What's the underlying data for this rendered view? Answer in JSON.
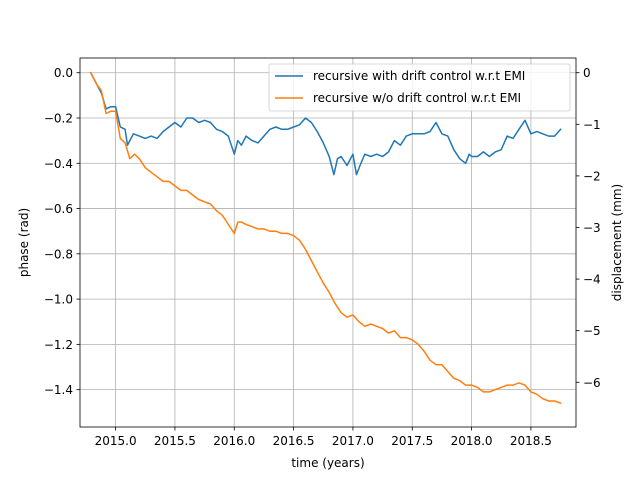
{
  "chart_data": {
    "type": "line",
    "title": "",
    "xlabel": "time (years)",
    "ylabel": "phase (rad)",
    "y2label": "displacement (mm)",
    "xlim": [
      2014.7,
      2018.88
    ],
    "ylim": [
      -1.565,
      0.065
    ],
    "y2lim": [
      -6.867,
      0.285
    ],
    "xticks": [
      2015.0,
      2015.5,
      2016.0,
      2016.5,
      2017.0,
      2017.5,
      2018.0,
      2018.5
    ],
    "xtick_labels": [
      "2015.0",
      "2015.5",
      "2016.0",
      "2016.5",
      "2017.0",
      "2017.5",
      "2018.0",
      "2018.5"
    ],
    "yticks": [
      0.0,
      -0.2,
      -0.4,
      -0.6,
      -0.8,
      -1.0,
      -1.2,
      -1.4
    ],
    "ytick_labels": [
      "0.0",
      "−0.2",
      "−0.4",
      "−0.6",
      "−0.8",
      "−1.0",
      "−1.2",
      "−1.4"
    ],
    "y2ticks": [
      0,
      -1,
      -2,
      -3,
      -4,
      -5,
      -6
    ],
    "y2tick_labels": [
      "0",
      "−1",
      "−2",
      "−3",
      "−4",
      "−5",
      "−6"
    ],
    "grid": true,
    "legend": "top-right",
    "series": [
      {
        "name": "recursive with drift control w.r.t EMI",
        "color": "#1f77b4",
        "x": [
          2014.79,
          2014.84,
          2014.88,
          2014.92,
          2014.96,
          2015.0,
          2015.04,
          2015.08,
          2015.1,
          2015.15,
          2015.2,
          2015.25,
          2015.3,
          2015.35,
          2015.4,
          2015.45,
          2015.5,
          2015.55,
          2015.6,
          2015.65,
          2015.7,
          2015.75,
          2015.8,
          2015.85,
          2015.9,
          2015.95,
          2016.0,
          2016.03,
          2016.06,
          2016.1,
          2016.15,
          2016.2,
          2016.25,
          2016.3,
          2016.35,
          2016.4,
          2016.45,
          2016.5,
          2016.55,
          2016.6,
          2016.65,
          2016.7,
          2016.75,
          2016.8,
          2016.84,
          2016.87,
          2016.9,
          2016.95,
          2017.0,
          2017.03,
          2017.06,
          2017.1,
          2017.15,
          2017.2,
          2017.25,
          2017.3,
          2017.35,
          2017.4,
          2017.45,
          2017.5,
          2017.55,
          2017.6,
          2017.65,
          2017.7,
          2017.75,
          2017.8,
          2017.85,
          2017.9,
          2017.95,
          2017.98,
          2018.0,
          2018.05,
          2018.1,
          2018.15,
          2018.2,
          2018.25,
          2018.3,
          2018.35,
          2018.4,
          2018.45,
          2018.5,
          2018.55,
          2018.6,
          2018.65,
          2018.7,
          2018.75
        ],
        "values": [
          0.0,
          -0.05,
          -0.09,
          -0.16,
          -0.15,
          -0.15,
          -0.24,
          -0.25,
          -0.32,
          -0.27,
          -0.28,
          -0.29,
          -0.28,
          -0.29,
          -0.26,
          -0.24,
          -0.22,
          -0.24,
          -0.2,
          -0.2,
          -0.22,
          -0.21,
          -0.22,
          -0.25,
          -0.26,
          -0.28,
          -0.36,
          -0.3,
          -0.32,
          -0.28,
          -0.3,
          -0.31,
          -0.28,
          -0.25,
          -0.24,
          -0.25,
          -0.25,
          -0.24,
          -0.23,
          -0.2,
          -0.22,
          -0.26,
          -0.31,
          -0.37,
          -0.45,
          -0.38,
          -0.37,
          -0.41,
          -0.36,
          -0.45,
          -0.41,
          -0.36,
          -0.37,
          -0.36,
          -0.37,
          -0.35,
          -0.3,
          -0.32,
          -0.28,
          -0.27,
          -0.27,
          -0.27,
          -0.26,
          -0.22,
          -0.27,
          -0.28,
          -0.34,
          -0.38,
          -0.4,
          -0.36,
          -0.37,
          -0.37,
          -0.35,
          -0.37,
          -0.35,
          -0.34,
          -0.28,
          -0.29,
          -0.25,
          -0.21,
          -0.27,
          -0.26,
          -0.27,
          -0.28,
          -0.28,
          -0.25
        ]
      },
      {
        "name": "recursive w/o drift control w.r.t EMI",
        "color": "#ff7f0e",
        "x": [
          2014.79,
          2014.84,
          2014.88,
          2014.92,
          2014.96,
          2015.0,
          2015.04,
          2015.08,
          2015.12,
          2015.16,
          2015.2,
          2015.25,
          2015.3,
          2015.35,
          2015.4,
          2015.45,
          2015.5,
          2015.55,
          2015.6,
          2015.65,
          2015.7,
          2015.75,
          2015.8,
          2015.85,
          2015.9,
          2015.95,
          2016.0,
          2016.03,
          2016.06,
          2016.1,
          2016.15,
          2016.2,
          2016.25,
          2016.3,
          2016.35,
          2016.4,
          2016.45,
          2016.5,
          2016.55,
          2016.6,
          2016.65,
          2016.7,
          2016.75,
          2016.8,
          2016.85,
          2016.9,
          2016.95,
          2017.0,
          2017.05,
          2017.1,
          2017.15,
          2017.2,
          2017.25,
          2017.3,
          2017.35,
          2017.4,
          2017.45,
          2017.5,
          2017.55,
          2017.6,
          2017.65,
          2017.7,
          2017.75,
          2017.8,
          2017.85,
          2017.9,
          2017.95,
          2018.0,
          2018.05,
          2018.1,
          2018.15,
          2018.2,
          2018.25,
          2018.3,
          2018.35,
          2018.4,
          2018.45,
          2018.5,
          2018.55,
          2018.6,
          2018.65,
          2018.7,
          2018.75
        ],
        "values": [
          0.0,
          -0.05,
          -0.08,
          -0.18,
          -0.17,
          -0.17,
          -0.29,
          -0.31,
          -0.38,
          -0.36,
          -0.38,
          -0.42,
          -0.44,
          -0.46,
          -0.48,
          -0.48,
          -0.5,
          -0.52,
          -0.52,
          -0.54,
          -0.56,
          -0.57,
          -0.58,
          -0.61,
          -0.63,
          -0.67,
          -0.71,
          -0.66,
          -0.66,
          -0.67,
          -0.68,
          -0.69,
          -0.69,
          -0.7,
          -0.7,
          -0.71,
          -0.71,
          -0.72,
          -0.74,
          -0.78,
          -0.83,
          -0.88,
          -0.93,
          -0.97,
          -1.02,
          -1.06,
          -1.08,
          -1.07,
          -1.1,
          -1.12,
          -1.11,
          -1.12,
          -1.13,
          -1.15,
          -1.14,
          -1.17,
          -1.17,
          -1.18,
          -1.2,
          -1.23,
          -1.27,
          -1.29,
          -1.29,
          -1.32,
          -1.35,
          -1.36,
          -1.38,
          -1.38,
          -1.39,
          -1.41,
          -1.41,
          -1.4,
          -1.39,
          -1.38,
          -1.38,
          -1.37,
          -1.38,
          -1.41,
          -1.42,
          -1.44,
          -1.45,
          -1.45,
          -1.46
        ]
      }
    ]
  }
}
